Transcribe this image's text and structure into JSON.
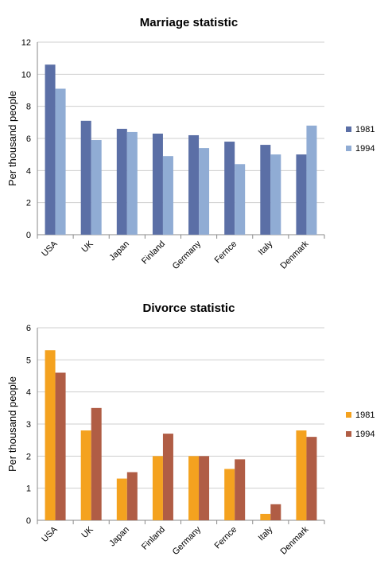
{
  "chart_data": [
    {
      "type": "bar",
      "title": "Marriage statistic",
      "xlabel": "",
      "ylabel": "Per thousand people",
      "ylim": [
        0,
        12
      ],
      "yticks": [
        0,
        2,
        4,
        6,
        8,
        10,
        12
      ],
      "grid": true,
      "legend_position": "right",
      "categories": [
        "USA",
        "UK",
        "Japan",
        "Finland",
        "Germany",
        "Fernce",
        "Italy",
        "Denmark"
      ],
      "series": [
        {
          "name": "1981",
          "color": "#5b6fa6",
          "values": [
            10.6,
            7.1,
            6.6,
            6.3,
            6.2,
            5.8,
            5.6,
            5.0
          ]
        },
        {
          "name": "1994",
          "color": "#90acd4",
          "values": [
            9.1,
            5.9,
            6.4,
            4.9,
            5.4,
            4.4,
            5.0,
            6.8
          ]
        }
      ]
    },
    {
      "type": "bar",
      "title": "Divorce statistic",
      "xlabel": "",
      "ylabel": "Per thousand people",
      "ylim": [
        0,
        6
      ],
      "yticks": [
        0,
        1,
        2,
        3,
        4,
        5,
        6
      ],
      "grid": true,
      "legend_position": "right",
      "categories": [
        "USA",
        "UK",
        "Japan",
        "Finland",
        "Germany",
        "Fernce",
        "Italy",
        "Denmark"
      ],
      "series": [
        {
          "name": "1981",
          "color": "#f4a21f",
          "values": [
            5.3,
            2.8,
            1.3,
            2.0,
            2.0,
            1.6,
            0.2,
            2.8
          ]
        },
        {
          "name": "1994",
          "color": "#b05d45",
          "values": [
            4.6,
            3.5,
            1.5,
            2.7,
            2.0,
            1.9,
            0.5,
            2.6
          ]
        }
      ]
    }
  ]
}
